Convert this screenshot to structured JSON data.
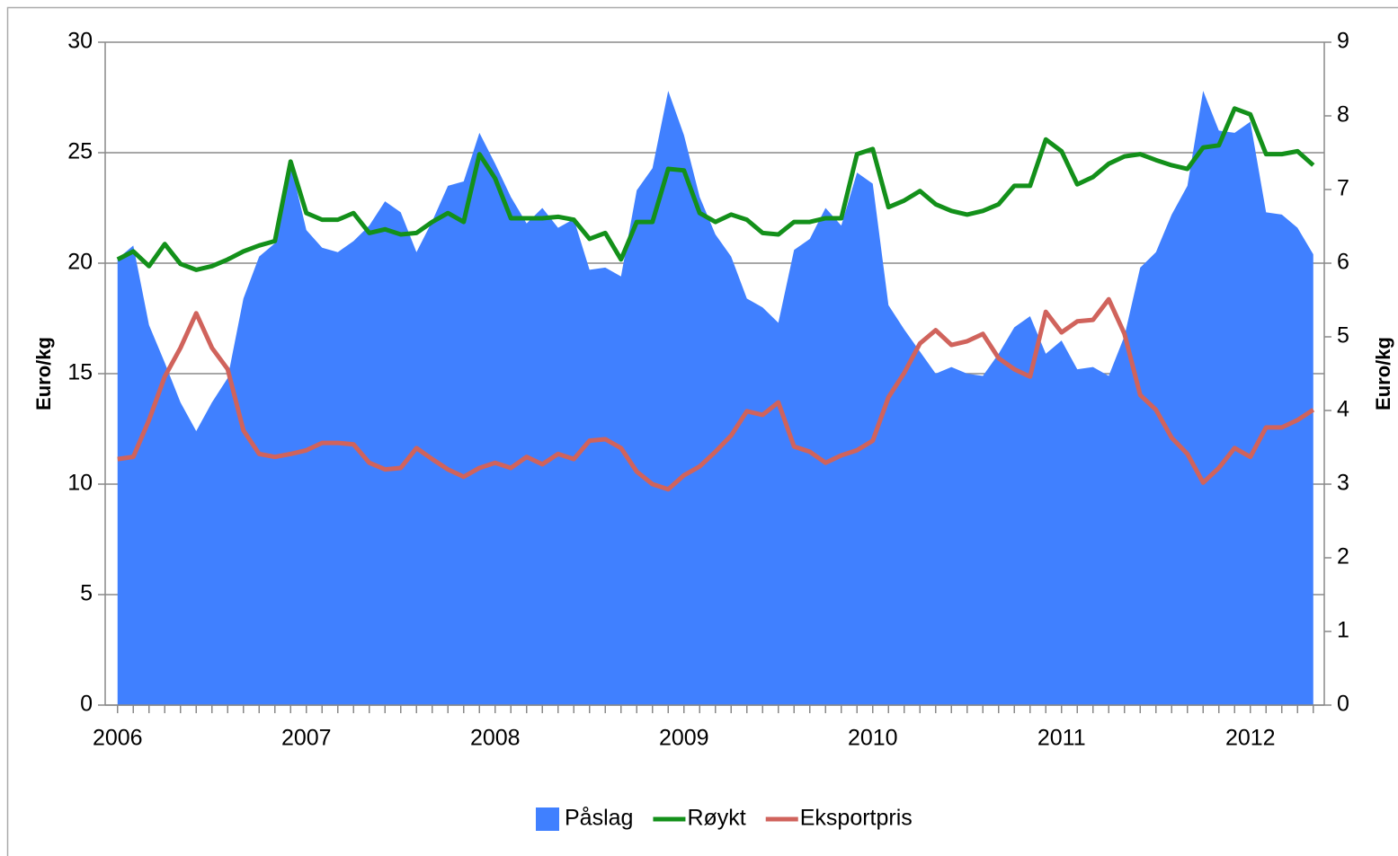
{
  "chart_data": {
    "type": "combo",
    "categories": [
      "2006",
      null,
      null,
      null,
      null,
      null,
      null,
      null,
      null,
      null,
      null,
      null,
      "2007",
      null,
      null,
      null,
      null,
      null,
      null,
      null,
      null,
      null,
      null,
      null,
      "2008",
      null,
      null,
      null,
      null,
      null,
      null,
      null,
      null,
      null,
      null,
      null,
      "2009",
      null,
      null,
      null,
      null,
      null,
      null,
      null,
      null,
      null,
      null,
      null,
      "2010",
      null,
      null,
      null,
      null,
      null,
      null,
      null,
      null,
      null,
      null,
      null,
      "2011",
      null,
      null,
      null,
      null,
      null,
      null,
      null,
      null,
      null,
      null,
      null,
      "2012",
      null,
      null,
      null,
      null
    ],
    "ylabel": "Euro/kg",
    "y2label": "Euro/kg",
    "ylim": [
      0,
      30
    ],
    "yticks": [
      0,
      5,
      10,
      15,
      20,
      25,
      30
    ],
    "y2lim": [
      0,
      9
    ],
    "y2ticks": [
      0,
      1,
      2,
      3,
      4,
      5,
      6,
      7,
      8,
      9
    ],
    "grid": true,
    "legend": "bottom",
    "series": [
      {
        "name": "Påslag",
        "type": "area",
        "color": "#4080ff",
        "values": [
          20.2,
          20.8,
          17.2,
          15.5,
          13.7,
          12.4,
          13.7,
          14.8,
          18.4,
          20.3,
          20.9,
          24.5,
          21.5,
          20.7,
          20.5,
          21.0,
          21.7,
          22.8,
          22.3,
          20.5,
          21.9,
          23.5,
          23.7,
          25.9,
          24.5,
          23.0,
          21.8,
          22.5,
          21.6,
          22.0,
          19.7,
          19.8,
          19.4,
          23.3,
          24.3,
          27.8,
          25.8,
          23.0,
          21.3,
          20.3,
          18.4,
          18.0,
          17.3,
          20.6,
          21.1,
          22.5,
          21.7,
          24.1,
          23.6,
          18.1,
          17.0,
          16.0,
          15.0,
          15.3,
          15.0,
          14.9,
          15.9,
          17.1,
          17.6,
          15.9,
          16.5,
          15.2,
          15.3,
          14.9,
          16.7,
          19.8,
          20.5,
          22.2,
          23.5,
          27.8,
          26.0,
          25.9,
          26.4,
          22.3,
          22.2,
          21.6,
          20.4
        ]
      },
      {
        "name": "Røykt",
        "type": "line",
        "axis": "y2",
        "color": "#13901a",
        "values": [
          6.05,
          6.16,
          5.96,
          6.26,
          5.99,
          5.91,
          5.96,
          6.05,
          6.16,
          6.24,
          6.3,
          7.38,
          6.68,
          6.59,
          6.59,
          6.68,
          6.41,
          6.46,
          6.39,
          6.41,
          6.56,
          6.68,
          6.56,
          7.48,
          7.15,
          6.61,
          6.61,
          6.61,
          6.63,
          6.59,
          6.33,
          6.41,
          6.05,
          6.56,
          6.56,
          7.28,
          7.26,
          6.68,
          6.56,
          6.66,
          6.59,
          6.41,
          6.39,
          6.56,
          6.56,
          6.61,
          6.61,
          7.48,
          7.55,
          6.76,
          6.85,
          6.98,
          6.8,
          6.71,
          6.66,
          6.71,
          6.8,
          7.05,
          7.05,
          7.68,
          7.52,
          7.07,
          7.17,
          7.35,
          7.45,
          7.48,
          7.4,
          7.33,
          7.28,
          7.57,
          7.6,
          8.1,
          8.02,
          7.48,
          7.48,
          7.52,
          7.33
        ]
      },
      {
        "name": "Eksportpris",
        "type": "line",
        "axis": "y2",
        "color": "#d0635c",
        "values": [
          3.34,
          3.37,
          3.87,
          4.46,
          4.85,
          5.32,
          4.85,
          4.56,
          3.73,
          3.41,
          3.37,
          3.41,
          3.46,
          3.56,
          3.56,
          3.54,
          3.29,
          3.2,
          3.22,
          3.49,
          3.34,
          3.2,
          3.1,
          3.22,
          3.29,
          3.22,
          3.37,
          3.27,
          3.41,
          3.34,
          3.59,
          3.61,
          3.49,
          3.17,
          3.0,
          2.93,
          3.12,
          3.24,
          3.44,
          3.66,
          3.99,
          3.94,
          4.11,
          3.51,
          3.44,
          3.29,
          3.39,
          3.46,
          3.59,
          4.18,
          4.51,
          4.91,
          5.09,
          4.89,
          4.94,
          5.04,
          4.71,
          4.56,
          4.46,
          5.34,
          5.06,
          5.21,
          5.23,
          5.51,
          5.04,
          4.21,
          4.01,
          3.63,
          3.41,
          3.02,
          3.22,
          3.49,
          3.37,
          3.77,
          3.77,
          3.87,
          4.01
        ]
      }
    ]
  }
}
